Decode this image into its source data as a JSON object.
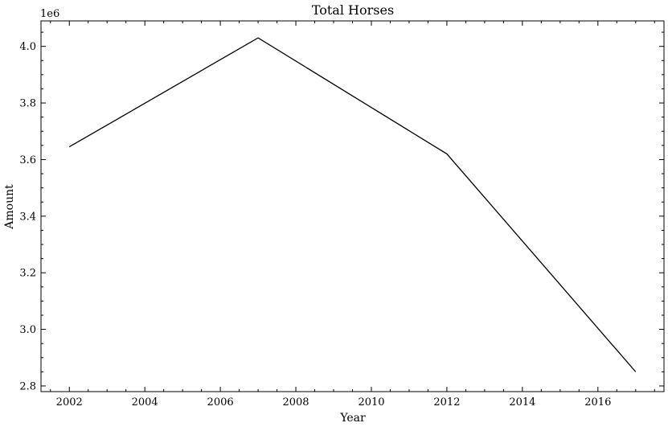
{
  "chart_data": {
    "type": "line",
    "title": "Total Horses",
    "xlabel": "Year",
    "ylabel": "Amount",
    "y_offset_label": "1e6",
    "xlim": [
      2001.25,
      2017.75
    ],
    "ylim": [
      2.78,
      4.09
    ],
    "x_ticks": [
      2002,
      2004,
      2006,
      2008,
      2010,
      2012,
      2014,
      2016
    ],
    "x_tick_labels": [
      "2002",
      "2004",
      "2006",
      "2008",
      "2010",
      "2012",
      "2014",
      "2016"
    ],
    "y_ticks": [
      2.8,
      3.0,
      3.2,
      3.4,
      3.6,
      3.8,
      4.0
    ],
    "y_tick_labels": [
      "2.8",
      "3.0",
      "3.2",
      "3.4",
      "3.6",
      "3.8",
      "4.0"
    ],
    "grid": false,
    "series": [
      {
        "x": [
          2002,
          2007,
          2012,
          2017
        ],
        "y": [
          3.645,
          4.03,
          3.62,
          2.85
        ],
        "color": "#000000"
      }
    ]
  }
}
